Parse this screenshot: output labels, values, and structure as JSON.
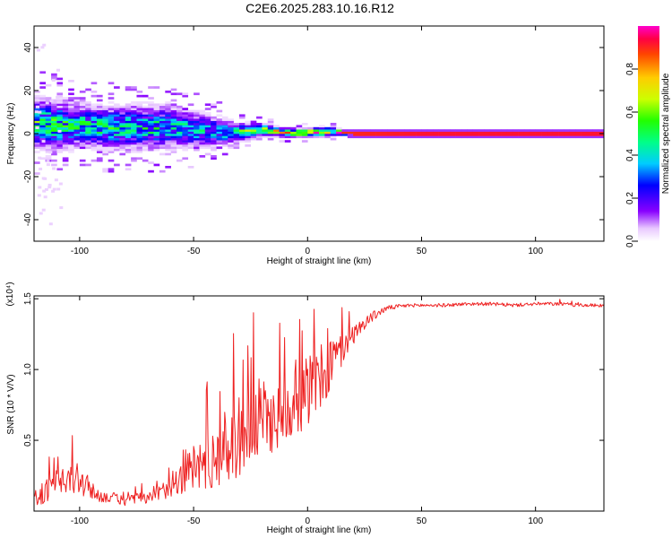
{
  "title": "C2E6.2025.283.10.16.R12",
  "chart_data": [
    {
      "type": "heatmap",
      "xlabel": "Height of straight line (km)",
      "ylabel": "Frequency (Hz)",
      "xlim": [
        -120,
        130
      ],
      "ylim": [
        -50,
        50
      ],
      "x_ticks": [
        -100,
        -50,
        0,
        50,
        100
      ],
      "x_tick_labels": [
        "-100",
        "-50",
        "0",
        "50",
        "100"
      ],
      "y_ticks": [
        -40,
        -20,
        0,
        20,
        40
      ],
      "y_tick_labels": [
        "-40",
        "-20",
        "0",
        "20",
        "40"
      ],
      "colorbar": {
        "label": "Normalized spectral amplitude",
        "range": [
          0,
          1
        ],
        "ticks": [
          0.0,
          0.2,
          0.4,
          0.6,
          0.8
        ],
        "tick_labels": [
          "0.0",
          "0.2",
          "0.4",
          "0.6",
          "0.8"
        ]
      },
      "ridge": {
        "x": [
          -120,
          -110,
          -100,
          -90,
          -80,
          -70,
          -60,
          -50,
          -40,
          -30,
          -20,
          -10,
          0,
          10,
          15,
          20,
          50,
          100,
          130
        ],
        "frequency": [
          5,
          4,
          4,
          3,
          3,
          3,
          3,
          2,
          1,
          0.5,
          2,
          0.5,
          0.5,
          1,
          0.5,
          0,
          0,
          0,
          0
        ],
        "amplitude": [
          0.5,
          0.5,
          0.45,
          0.45,
          0.45,
          0.45,
          0.4,
          0.4,
          0.35,
          0.55,
          0.6,
          0.7,
          0.75,
          0.75,
          0.85,
          0.9,
          0.92,
          0.92,
          0.92
        ],
        "spread_hz": [
          8,
          8,
          7,
          7,
          7,
          7,
          7,
          6,
          5,
          3,
          2,
          1.5,
          1.5,
          1.5,
          1,
          1,
          1,
          1,
          1
        ]
      }
    },
    {
      "type": "line",
      "series": [
        {
          "name": "SNR",
          "color": "#ee2222",
          "x": [
            -120,
            -115,
            -110,
            -105,
            -100,
            -95,
            -90,
            -85,
            -80,
            -75,
            -70,
            -65,
            -60,
            -55,
            -50,
            -45,
            -40,
            -35,
            -30,
            -25,
            -20,
            -15,
            -10,
            -5,
            0,
            5,
            10,
            15,
            20,
            25,
            30,
            35,
            40,
            45,
            50,
            60,
            70,
            80,
            90,
            100,
            110,
            120,
            130
          ],
          "y": [
            0.05,
            0.12,
            0.14,
            0.18,
            0.2,
            0.12,
            0.09,
            0.08,
            0.06,
            0.08,
            0.07,
            0.1,
            0.16,
            0.2,
            0.26,
            0.28,
            0.32,
            0.38,
            0.44,
            0.5,
            0.56,
            0.58,
            0.62,
            0.7,
            0.76,
            0.84,
            0.96,
            1.1,
            1.22,
            1.32,
            1.38,
            1.43,
            1.44,
            1.45,
            1.45,
            1.45,
            1.46,
            1.46,
            1.45,
            1.46,
            1.46,
            1.45,
            1.45
          ],
          "noise": [
            0.08,
            0.1,
            0.12,
            0.14,
            0.18,
            0.08,
            0.05,
            0.05,
            0.04,
            0.05,
            0.05,
            0.08,
            0.1,
            0.15,
            0.22,
            0.26,
            0.28,
            0.34,
            0.36,
            0.36,
            0.38,
            0.3,
            0.28,
            0.3,
            0.34,
            0.3,
            0.3,
            0.14,
            0.08,
            0.06,
            0.04,
            0.02,
            0.02,
            0.015,
            0.015,
            0.015,
            0.015,
            0.015,
            0.015,
            0.015,
            0.015,
            0.015,
            0.015
          ]
        }
      ],
      "xlabel": "Height of straight line (km)",
      "ylabel": "SNR (10 * V/V)",
      "multiplier": "(x10⁴)",
      "xlim": [
        -120,
        130
      ],
      "ylim": [
        0,
        1.52
      ],
      "x_ticks": [
        -100,
        -50,
        0,
        50,
        100
      ],
      "x_tick_labels": [
        "-100",
        "-50",
        "0",
        "50",
        "100"
      ],
      "y_ticks": [
        0.5,
        1.0,
        1.5
      ],
      "y_tick_labels": [
        "0.5",
        "1.0",
        "1.5"
      ]
    }
  ]
}
